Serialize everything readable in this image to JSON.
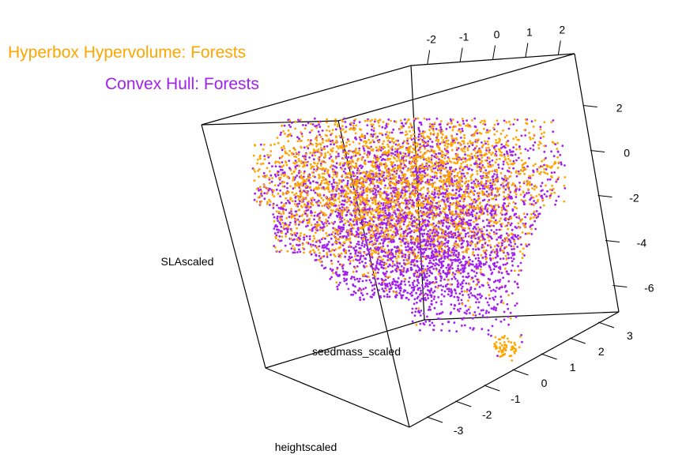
{
  "chart_data": {
    "type": "scatter",
    "projection": "3d",
    "legend_placement": "top-left",
    "grid": false,
    "series": [
      {
        "name": "Hyperbox Hypervolume: Forests",
        "color": "#ffa500"
      },
      {
        "name": "Convex Hull: Forests",
        "color": "#a020f0"
      }
    ],
    "axes": {
      "z": {
        "label": "SLAscaled",
        "ticks": [
          "2",
          "0",
          "-2",
          "-4",
          "-6"
        ]
      },
      "y": {
        "label": "seedmass_scaled",
        "ticks": [
          "3",
          "2",
          "1",
          "0",
          "-1",
          "-2",
          "-3"
        ]
      },
      "x": {
        "label": "heightscaled",
        "ticks": [
          "-2",
          "-1",
          "0",
          "1",
          "2"
        ]
      }
    }
  }
}
